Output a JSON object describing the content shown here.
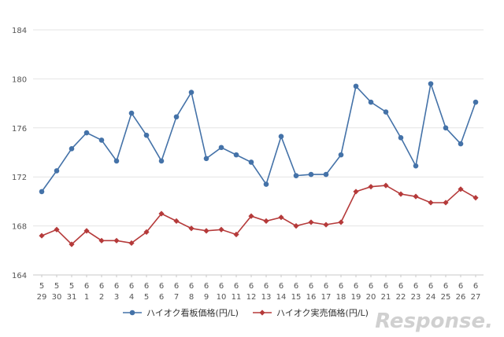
{
  "chart_data": {
    "type": "line",
    "categories": [
      [
        "5",
        "29"
      ],
      [
        "5",
        "30"
      ],
      [
        "5",
        "31"
      ],
      [
        "6",
        "1"
      ],
      [
        "6",
        "2"
      ],
      [
        "6",
        "3"
      ],
      [
        "6",
        "4"
      ],
      [
        "6",
        "5"
      ],
      [
        "6",
        "6"
      ],
      [
        "6",
        "7"
      ],
      [
        "6",
        "8"
      ],
      [
        "6",
        "9"
      ],
      [
        "6",
        "10"
      ],
      [
        "6",
        "11"
      ],
      [
        "6",
        "12"
      ],
      [
        "6",
        "13"
      ],
      [
        "6",
        "14"
      ],
      [
        "6",
        "15"
      ],
      [
        "6",
        "16"
      ],
      [
        "6",
        "17"
      ],
      [
        "6",
        "18"
      ],
      [
        "6",
        "19"
      ],
      [
        "6",
        "20"
      ],
      [
        "6",
        "21"
      ],
      [
        "6",
        "22"
      ],
      [
        "6",
        "23"
      ],
      [
        "6",
        "24"
      ],
      [
        "6",
        "25"
      ],
      [
        "6",
        "26"
      ],
      [
        "6",
        "27"
      ]
    ],
    "series": [
      {
        "name": "ハイオク看板価格(円/L)",
        "color": "#4472a8",
        "marker": "circle",
        "values": [
          170.8,
          172.5,
          174.3,
          175.6,
          175.0,
          173.3,
          177.2,
          175.4,
          173.3,
          176.9,
          178.9,
          173.5,
          174.4,
          173.8,
          173.2,
          171.4,
          175.3,
          172.1,
          172.2,
          172.2,
          173.8,
          179.4,
          178.1,
          177.3,
          175.2,
          172.9,
          179.6,
          176.0,
          174.7,
          178.1
        ]
      },
      {
        "name": "ハイオク実売価格(円/L)",
        "color": "#b53a3a",
        "marker": "diamond",
        "values": [
          167.2,
          167.7,
          166.5,
          167.6,
          166.8,
          166.8,
          166.6,
          167.5,
          169.0,
          168.4,
          167.8,
          167.6,
          167.7,
          167.3,
          168.8,
          168.4,
          168.7,
          168.0,
          168.3,
          168.1,
          168.3,
          170.8,
          171.2,
          171.3,
          170.6,
          170.4,
          169.9,
          169.9,
          171.0,
          170.3
        ]
      }
    ],
    "yticks": [
      164,
      168,
      172,
      176,
      180,
      184
    ],
    "ylim": [
      164,
      184
    ],
    "grid": true,
    "legend": "bottom",
    "watermark": "Response."
  }
}
